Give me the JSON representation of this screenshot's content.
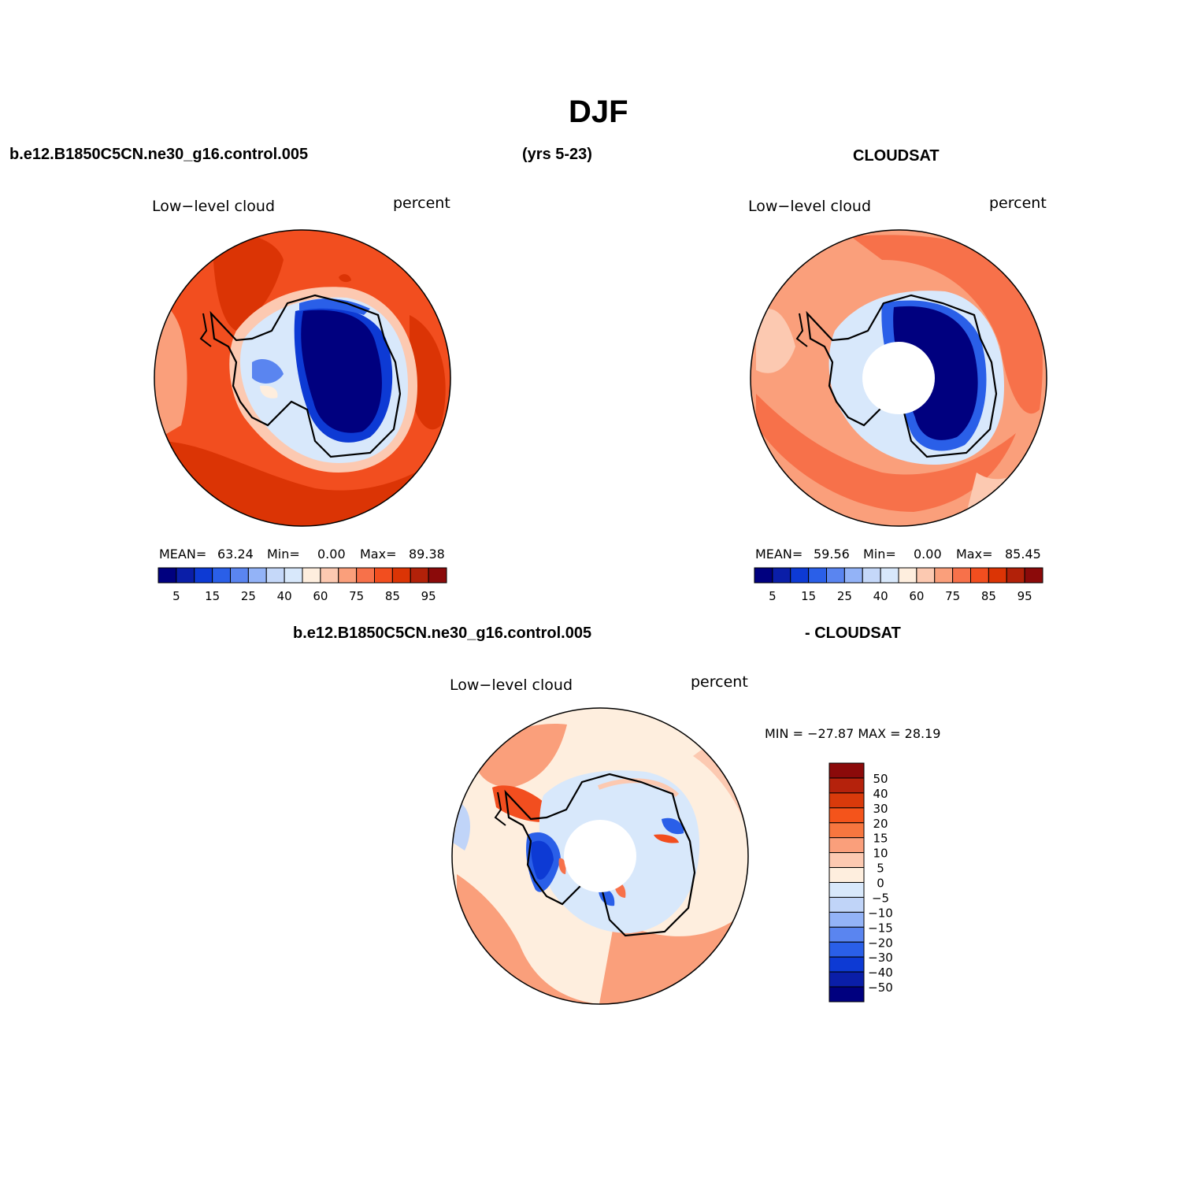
{
  "title": "DJF",
  "header": {
    "case_name": "b.e12.B1850C5CN.ne30_g16.control.005",
    "years": "(yrs 5-23)",
    "obs_name": "CLOUDSAT"
  },
  "panels": [
    {
      "variable": "Low−level cloud",
      "units": "percent",
      "stats": {
        "mean_label": "MEAN=",
        "mean": "63.24",
        "min_label": "Min=",
        "min": "0.00",
        "max_label": "Max=",
        "max": "89.38"
      }
    },
    {
      "variable": "Low−level cloud",
      "units": "percent",
      "stats": {
        "mean_label": "MEAN=",
        "mean": "59.56",
        "min_label": "Min=",
        "min": "0.00",
        "max_label": "Max=",
        "max": "85.45"
      }
    }
  ],
  "diff": {
    "title_left": "b.e12.B1850C5CN.ne30_g16.control.005",
    "title_right": "- CLOUDSAT",
    "variable": "Low−level cloud",
    "units": "percent",
    "minmax": "MIN = −27.87 MAX =   28.19"
  },
  "colorbar_main": {
    "colors": [
      "#00007f",
      "#0a1ea8",
      "#0d3ad4",
      "#2a5fe8",
      "#5a85f0",
      "#93b3f7",
      "#c5d8f9",
      "#d8e8fb",
      "#feeede",
      "#fcc9b1",
      "#fa9f7b",
      "#f7714a",
      "#f24e1f",
      "#db3405",
      "#b22109",
      "#8b0a0a"
    ],
    "labels": [
      "5",
      "15",
      "25",
      "40",
      "60",
      "75",
      "85",
      "95"
    ]
  },
  "colorbar_diff": {
    "colors": [
      "#8b0a0a",
      "#b5220c",
      "#d93a0b",
      "#f4541b",
      "#f7763f",
      "#fa9f7b",
      "#fcc9b1",
      "#feeede",
      "#d8e8fb",
      "#c0d4f8",
      "#93b3f7",
      "#5a85f0",
      "#2a5fe8",
      "#0d3ad4",
      "#0a1ea8",
      "#00007f"
    ],
    "labels": [
      "50",
      "40",
      "30",
      "20",
      "15",
      "10",
      "5",
      "0",
      "−5",
      "−10",
      "−15",
      "−20",
      "−30",
      "−40",
      "−50"
    ]
  },
  "colors": {
    "ocean_high": "#f24e1f",
    "ocean_mid": "#db3405",
    "ice_low": "#00007f",
    "obs_ocean": "#fa9f7b",
    "diff_bg": "#feeede"
  }
}
